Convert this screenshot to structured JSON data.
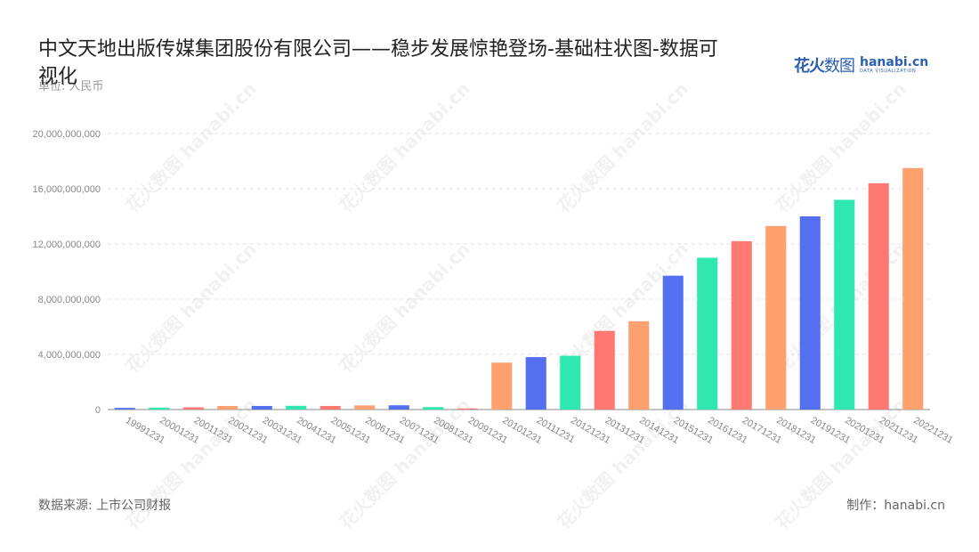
{
  "title": "中文天地出版传媒集团股份有限公司——稳步发展惊艳登场-基础柱状图-数据可视化",
  "unit_label": "单位: 人民币",
  "logo": {
    "cn_bold": "花火",
    "cn_light": "数图",
    "en": "hanabi.cn",
    "en_sub": "DATA VISUALIZATION"
  },
  "watermark": "花火数图 hanabi.cn",
  "footer": {
    "source": "数据来源: 上市公司财报",
    "maker": "制作：hanabi.cn"
  },
  "chart_data": {
    "type": "bar",
    "title": "中文天地出版传媒集团股份有限公司——稳步发展惊艳登场-基础柱状图-数据可视化",
    "ylabel": "单位: 人民币",
    "xlabel": "",
    "ylim": [
      0,
      20000000000
    ],
    "yticks": [
      "0",
      "4,000,000,000",
      "8,000,000,000",
      "12,000,000,000",
      "16,000,000,000",
      "20,000,000,000"
    ],
    "ytick_values": [
      0,
      4000000000,
      8000000000,
      12000000000,
      16000000000,
      20000000000
    ],
    "grid": true,
    "palette": [
      "#5470f0",
      "#2ee8b0",
      "#ff7972",
      "#ffa06f"
    ],
    "categories": [
      "19991231",
      "20001231",
      "20011231",
      "20021231",
      "20031231",
      "20041231",
      "20051231",
      "20061231",
      "20071231",
      "20081231",
      "20091231",
      "20101231",
      "20111231",
      "20121231",
      "20131231",
      "20141231",
      "20151231",
      "20161231",
      "20171231",
      "20181231",
      "20191231",
      "20201231",
      "20211231",
      "20221231"
    ],
    "values": [
      120000000,
      140000000,
      160000000,
      260000000,
      260000000,
      270000000,
      260000000,
      300000000,
      310000000,
      180000000,
      80000000,
      3400000000,
      3800000000,
      3900000000,
      5700000000,
      6400000000,
      9700000000,
      11000000000,
      12200000000,
      13300000000,
      14000000000,
      15200000000,
      16400000000,
      17500000000
    ],
    "colors": [
      "#5470f0",
      "#2ee8b0",
      "#ff7972",
      "#ffa06f",
      "#5470f0",
      "#2ee8b0",
      "#ff7972",
      "#ffa06f",
      "#5470f0",
      "#2ee8b0",
      "#ff7972",
      "#ffa06f",
      "#5470f0",
      "#2ee8b0",
      "#ff7972",
      "#ffa06f",
      "#5470f0",
      "#2ee8b0",
      "#ff7972",
      "#ffa06f",
      "#5470f0",
      "#2ee8b0",
      "#ff7972",
      "#ffa06f"
    ]
  }
}
